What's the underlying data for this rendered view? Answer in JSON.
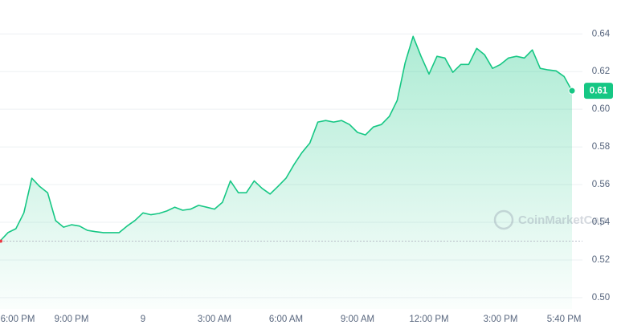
{
  "chart_data": {
    "type": "area",
    "categories": [
      "6:00 PM",
      null,
      null,
      null,
      null,
      null,
      null,
      null,
      null,
      "9:00 PM",
      null,
      null,
      null,
      null,
      null,
      null,
      null,
      null,
      "9",
      null,
      null,
      null,
      null,
      null,
      null,
      null,
      null,
      "3:00 AM",
      null,
      null,
      null,
      null,
      null,
      null,
      null,
      null,
      "6:00 AM",
      null,
      null,
      null,
      null,
      null,
      null,
      null,
      null,
      "9:00 AM",
      null,
      null,
      null,
      null,
      null,
      null,
      null,
      null,
      "12:00 PM",
      null,
      null,
      null,
      null,
      null,
      null,
      null,
      null,
      "3:00 PM",
      null,
      null,
      null,
      null,
      null,
      null,
      null,
      "5:40 PM",
      null
    ],
    "series": [
      {
        "color": "#16c784",
        "values": [
          0.53,
          0.5345,
          0.5366,
          0.545,
          0.5634,
          0.559,
          0.5557,
          0.5409,
          0.5374,
          0.5387,
          0.538,
          0.5357,
          0.535,
          0.5345,
          0.5345,
          0.5345,
          0.538,
          0.541,
          0.545,
          0.544,
          0.5447,
          0.546,
          0.548,
          0.5464,
          0.547,
          0.549,
          0.548,
          0.547,
          0.5506,
          0.562,
          0.5557,
          0.5557,
          0.562,
          0.558,
          0.555,
          0.5591,
          0.5634,
          0.5706,
          0.577,
          0.5821,
          0.5932,
          0.594,
          0.5932,
          0.594,
          0.5919,
          0.5877,
          0.5864,
          0.5906,
          0.5919,
          0.5962,
          0.6047,
          0.6247,
          0.6387,
          0.6281,
          0.6187,
          0.6281,
          0.6272,
          0.6196,
          0.6238,
          0.6238,
          0.6323,
          0.6289,
          0.6217,
          0.6238,
          0.6272,
          0.6281,
          0.6272,
          0.6315,
          0.6217,
          0.6209,
          0.6204,
          0.6174,
          0.6098
        ]
      }
    ],
    "current_price_label": "0.61",
    "watermark": "CoinMarketCap",
    "ylim": [
      0.494,
      0.658
    ],
    "yticks": [
      0.64,
      0.62,
      {
        "value": 0.6,
        "label": "0.60"
      },
      0.58,
      0.56,
      0.54,
      0.52,
      {
        "value": 0.5,
        "label": "0.50"
      }
    ],
    "grid": true
  }
}
